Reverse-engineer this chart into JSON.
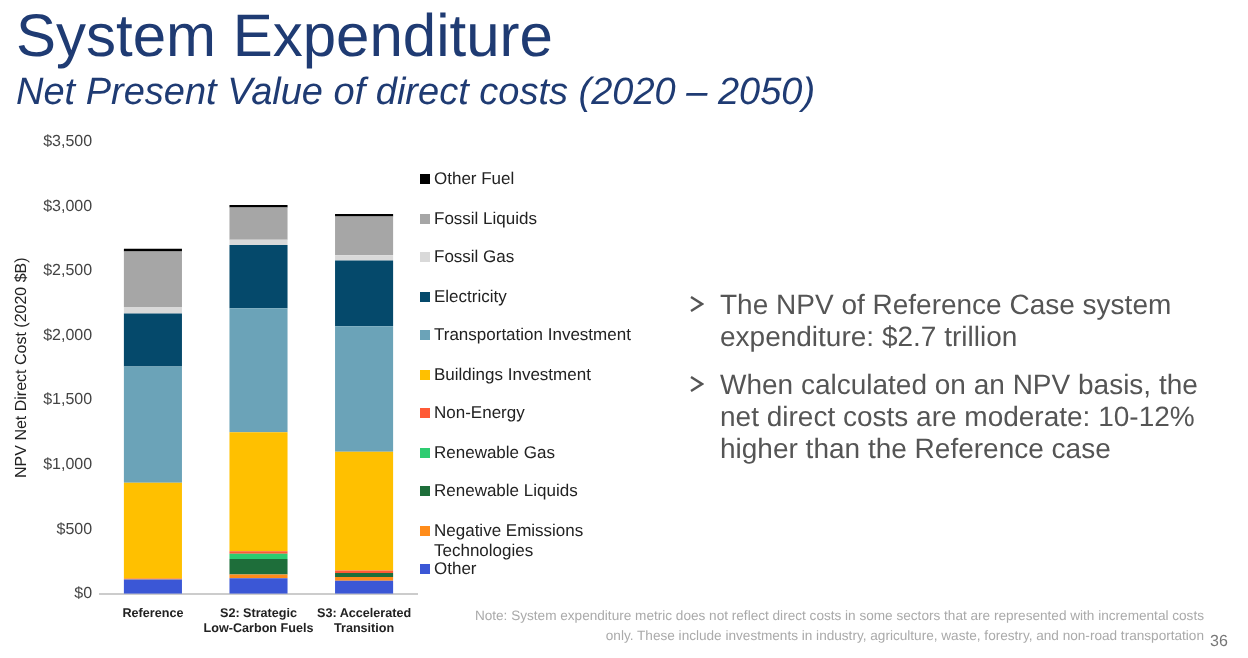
{
  "chart_data": {
    "type": "bar",
    "title": "System Expenditure",
    "subtitle": "Net Present Value of direct costs (2020 – 2050)",
    "ylabel": "NPV Net Direct Cost (2020 $B)",
    "stacked": true,
    "grid": false,
    "legend": "right",
    "categories": [
      "Reference",
      "S2: Strategic Low-Carbon Fuels",
      "S3: Accelerated Transition"
    ],
    "ylim": [
      0,
      3500
    ],
    "yticks": [
      {
        "value": 0,
        "label": "$0"
      },
      {
        "value": 500,
        "label": "$500"
      },
      {
        "value": 1000,
        "label": "$1,000"
      },
      {
        "value": 1500,
        "label": "$1,500"
      },
      {
        "value": 2000,
        "label": "$2,000"
      },
      {
        "value": 2500,
        "label": "$2,500"
      },
      {
        "value": 3000,
        "label": "$3,000"
      },
      {
        "value": 3500,
        "label": "$3,500"
      }
    ],
    "series": [
      {
        "name": "Other",
        "color": "#3b57d6",
        "values": [
          110,
          120,
          100
        ]
      },
      {
        "name": "Negative Emissions Technologies",
        "color": "#ff8c1a",
        "values": [
          10,
          30,
          30
        ]
      },
      {
        "name": "Renewable Liquids",
        "color": "#1e6e3a",
        "values": [
          0,
          120,
          30
        ]
      },
      {
        "name": "Renewable Gas",
        "color": "#2ecc71",
        "values": [
          0,
          40,
          0
        ]
      },
      {
        "name": "Non-Energy",
        "color": "#ff5a36",
        "values": [
          0,
          20,
          20
        ]
      },
      {
        "name": "Buildings Investment",
        "color": "#ffc000",
        "values": [
          740,
          920,
          920
        ]
      },
      {
        "name": "Transportation Investment",
        "color": "#6ba3b8",
        "values": [
          900,
          960,
          970
        ]
      },
      {
        "name": "Electricity",
        "color": "#05496b",
        "values": [
          410,
          490,
          510
        ]
      },
      {
        "name": "Fossil Gas",
        "color": "#d9d9d9",
        "values": [
          50,
          40,
          40
        ]
      },
      {
        "name": "Fossil Liquids",
        "color": "#a6a6a6",
        "values": [
          430,
          250,
          300
        ]
      },
      {
        "name": "Other Fuel",
        "color": "#000000",
        "values": [
          20,
          20,
          20
        ]
      }
    ],
    "annotations": [
      "The NPV of Reference Case system expenditure: $2.7 trillion",
      "When calculated on an NPV basis, the net direct costs are moderate: 10-12% higher than the Reference case",
      "Note: System expenditure metric does not reflect direct costs in some sectors that are represented with incremental costs only. These include investments in industry, agriculture, waste, forestry, and non-road transportation",
      "36"
    ]
  }
}
